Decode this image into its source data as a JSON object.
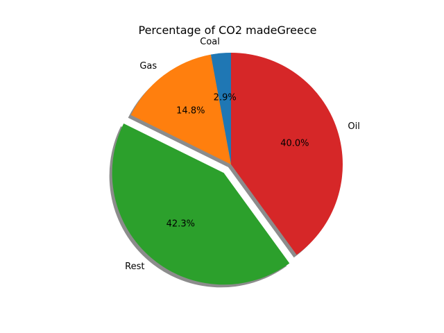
{
  "chart_data": {
    "type": "pie",
    "title": "Percentage of CO2 madeGreece",
    "labels": [
      "Coal",
      "Gas",
      "Rest",
      "Oil"
    ],
    "values": [
      2.9,
      14.8,
      42.3,
      40.0
    ],
    "percent_labels": [
      "2.9%",
      "14.8%",
      "42.3%",
      "40.0%"
    ],
    "exploded": [
      false,
      false,
      true,
      false
    ],
    "shadow": true,
    "start_angle_deg": 90,
    "direction": "counterclockwise",
    "colors": [
      "#1f77b4",
      "#ff7f0e",
      "#2ca02c",
      "#d62728"
    ]
  }
}
